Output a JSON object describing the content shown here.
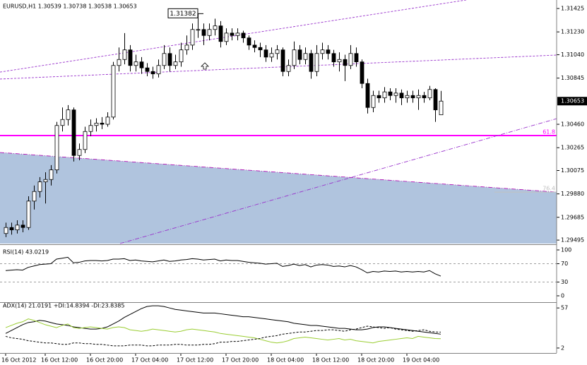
{
  "chart_data": [
    {
      "type": "candlestick",
      "title": "EURUSD,H1 1.30539 1.30738 1.30538 1.30653",
      "categories": [
        "16 Oct 2012",
        null,
        null,
        null,
        null,
        null,
        null,
        "16 Oct 12:00",
        null,
        null,
        null,
        null,
        null,
        null,
        null,
        "16 Oct 20:00",
        null,
        null,
        null,
        null,
        null,
        null,
        null,
        "17 Oct 04:00",
        null,
        null,
        null,
        null,
        null,
        null,
        null,
        "17 Oct 12:00",
        null,
        null,
        null,
        null,
        null,
        null,
        null,
        "17 Oct 20:00",
        null,
        null,
        null,
        null,
        null,
        null,
        null,
        "18 Oct 04:00",
        null,
        null,
        null,
        null,
        null,
        null,
        null,
        "18 Oct 12:00",
        null,
        null,
        null,
        null,
        null,
        null,
        null,
        "18 Oct 20:00",
        null,
        null,
        null,
        null,
        null,
        null,
        null,
        "19 Oct 04:00",
        null,
        null,
        null,
        null,
        null,
        null
      ],
      "open": [
        1.2955,
        1.296,
        1.2958,
        1.2962,
        1.296,
        1.2982,
        1.299,
        1.2998,
        1.3,
        1.3008,
        1.3045,
        1.305,
        1.3058,
        1.302,
        1.3025,
        1.304,
        1.3045,
        1.3047,
        1.3046,
        1.3052,
        1.3095,
        1.31,
        1.3108,
        1.3095,
        1.3098,
        1.3093,
        1.309,
        1.3088,
        1.3095,
        1.3105,
        1.3095,
        1.3098,
        1.3108,
        1.3112,
        1.3125,
        1.3125,
        1.312,
        1.3125,
        1.3128,
        1.3115,
        1.3122,
        1.312,
        1.3122,
        1.3118,
        1.3112,
        1.311,
        1.3108,
        1.3102,
        1.3105,
        1.3108,
        1.309,
        1.3095,
        1.3108,
        1.31,
        1.3105,
        1.309,
        1.3105,
        1.3108,
        1.3105,
        1.3098,
        1.31,
        1.3095,
        1.3105,
        1.3098,
        1.308,
        1.306,
        1.307,
        1.3068,
        1.3073,
        1.307,
        1.3072,
        1.3068,
        1.307,
        1.3068,
        1.307,
        1.3068,
        1.3075,
        1.30539
      ],
      "high": [
        1.2964,
        1.2964,
        1.2966,
        1.2966,
        1.2986,
        1.2995,
        1.3002,
        1.3006,
        1.3012,
        1.3048,
        1.306,
        1.3062,
        1.306,
        1.303,
        1.3044,
        1.305,
        1.3051,
        1.3052,
        1.3056,
        1.3098,
        1.311,
        1.3122,
        1.3112,
        1.3104,
        1.3102,
        1.3097,
        1.3094,
        1.31,
        1.3112,
        1.311,
        1.3104,
        1.3114,
        1.312,
        1.313,
        1.3138,
        1.313,
        1.313,
        1.3134,
        1.3132,
        1.3126,
        1.3126,
        1.3126,
        1.3124,
        1.312,
        1.3116,
        1.3114,
        1.3112,
        1.311,
        1.3112,
        1.311,
        1.31,
        1.3115,
        1.3112,
        1.311,
        1.3108,
        1.3112,
        1.3114,
        1.3112,
        1.3108,
        1.3106,
        1.3104,
        1.3112,
        1.311,
        1.31,
        1.3084,
        1.3074,
        1.3074,
        1.3077,
        1.3076,
        1.3076,
        1.3075,
        1.3074,
        1.3074,
        1.3075,
        1.3073,
        1.3078,
        1.3076,
        1.30738
      ],
      "low": [
        1.2952,
        1.2954,
        1.2955,
        1.2956,
        1.2958,
        1.2975,
        1.2985,
        1.298,
        1.2995,
        1.3005,
        1.304,
        1.3045,
        1.3015,
        1.3016,
        1.3022,
        1.3036,
        1.304,
        1.3042,
        1.3044,
        1.305,
        1.309,
        1.3096,
        1.309,
        1.309,
        1.3088,
        1.3086,
        1.3084,
        1.3085,
        1.3092,
        1.309,
        1.3092,
        1.3094,
        1.3104,
        1.3108,
        1.3118,
        1.3112,
        1.3116,
        1.312,
        1.311,
        1.3112,
        1.3116,
        1.3116,
        1.3114,
        1.3108,
        1.3106,
        1.3102,
        1.3098,
        1.3098,
        1.31,
        1.3086,
        1.3086,
        1.3092,
        1.3096,
        1.3096,
        1.3084,
        1.3086,
        1.31,
        1.31,
        1.3094,
        1.309,
        1.3082,
        1.3092,
        1.3094,
        1.3076,
        1.3055,
        1.3056,
        1.3064,
        1.3064,
        1.3066,
        1.3064,
        1.3062,
        1.3064,
        1.3064,
        1.3058,
        1.3064,
        1.3066,
        1.3048,
        1.30538
      ],
      "close": [
        1.296,
        1.2958,
        1.2962,
        1.296,
        1.2982,
        1.299,
        1.2998,
        1.3,
        1.3008,
        1.3045,
        1.305,
        1.3058,
        1.302,
        1.3025,
        1.304,
        1.3045,
        1.3047,
        1.3046,
        1.3052,
        1.3095,
        1.31,
        1.3108,
        1.3095,
        1.3098,
        1.3093,
        1.309,
        1.3088,
        1.3095,
        1.3105,
        1.3095,
        1.3098,
        1.3108,
        1.3112,
        1.3125,
        1.3125,
        1.312,
        1.3125,
        1.3128,
        1.3115,
        1.3122,
        1.312,
        1.3122,
        1.3118,
        1.3112,
        1.311,
        1.3108,
        1.3102,
        1.3105,
        1.3108,
        1.309,
        1.3095,
        1.3108,
        1.31,
        1.3105,
        1.309,
        1.3105,
        1.3108,
        1.3105,
        1.3098,
        1.31,
        1.3095,
        1.3105,
        1.3098,
        1.308,
        1.306,
        1.307,
        1.3068,
        1.3073,
        1.307,
        1.3072,
        1.3068,
        1.307,
        1.3068,
        1.307,
        1.3068,
        1.3075,
        1.3058,
        1.30653
      ],
      "ylim": [
        1.29466,
        1.31484
      ],
      "yticks": [
        1.31425,
        {
          "value": 1.3123,
          "label": "1.31230"
        },
        {
          "value": 1.3104,
          "label": "1.31040"
        },
        {
          "value": 1.30845,
          "label": "1.30845"
        },
        {
          "value": 1.3046,
          "label": "1.30460"
        },
        {
          "value": 1.30265,
          "label": "1.30265"
        },
        {
          "value": 1.30075,
          "label": "1.30075"
        },
        {
          "value": 1.2988,
          "label": "1.29880"
        },
        {
          "value": 1.29685,
          "label": "1.29685"
        },
        {
          "value": 1.29495,
          "label": "1.29495"
        }
      ],
      "last_price": 1.30653,
      "price_label": 1.31382,
      "trendlines": [
        {
          "x": [
            -1,
            81.5
          ],
          "y": [
            1.30895,
            1.31496
          ],
          "color": "#9932cc",
          "dash": "3,2"
        },
        {
          "x": [
            -1,
            97.5
          ],
          "y": [
            1.30837,
            1.31037
          ],
          "color": "#9932cc",
          "dash": "3,2"
        },
        {
          "x": [
            20.25,
            97.5
          ],
          "y": [
            1.29466,
            1.30507
          ],
          "color": "#9932cc",
          "dash": "6,2,1,2"
        }
      ],
      "zone": {
        "label": "76.4",
        "x": [
          -1,
          97.5
        ],
        "y": [
          1.30225,
          1.29895
        ],
        "color": "#b0c4de",
        "edge": "#b000b0"
      },
      "levels": [
        {
          "label": "61.8",
          "value": 1.30366,
          "color": "#ff00ff"
        }
      ]
    },
    {
      "type": "line",
      "title": "RSI(14) 43.0219",
      "ylim": [
        0,
        100
      ],
      "yticks": [
        100,
        70,
        30,
        0
      ],
      "levels": [
        70,
        30
      ],
      "series": [
        {
          "color": "#000000",
          "values": [
            55,
            56,
            57,
            56,
            62,
            65,
            68,
            69,
            70,
            80,
            82,
            84,
            72,
            73,
            76,
            77,
            77,
            76,
            77,
            80,
            80,
            81,
            77,
            78,
            76,
            75,
            74,
            76,
            78,
            75,
            76,
            78,
            79,
            81,
            80,
            78,
            79,
            80,
            76,
            78,
            77,
            77,
            75,
            73,
            72,
            71,
            69,
            70,
            71,
            64,
            66,
            69,
            66,
            68,
            63,
            67,
            68,
            67,
            64,
            65,
            63,
            66,
            63,
            57,
            50,
            53,
            52,
            54,
            53,
            54,
            52,
            53,
            52,
            53,
            52,
            55,
            48,
            43.0219
          ]
        }
      ]
    },
    {
      "type": "line",
      "title": "ADX(14) 21.0191 +DI:14.8394 -DI:23.8385",
      "ylim": [
        0,
        63
      ],
      "yticks": [
        57,
        2
      ],
      "series": [
        {
          "color": "#000000",
          "values": [
            22,
            26,
            30,
            34,
            37,
            38,
            40,
            39,
            37,
            35,
            34,
            33,
            31,
            30,
            29,
            28,
            28,
            29,
            31,
            35,
            39,
            44,
            48,
            52,
            56,
            59,
            60,
            60,
            59,
            57,
            55,
            54,
            53,
            52,
            51,
            50,
            50,
            50,
            49,
            48,
            47,
            46,
            45,
            45,
            44,
            43,
            42,
            41,
            40,
            39,
            38,
            36,
            35,
            34,
            33,
            33,
            32,
            31,
            30,
            29,
            29,
            28,
            27,
            27,
            28,
            30,
            31,
            31,
            30,
            29,
            28,
            27,
            26,
            25,
            24,
            23,
            22,
            21.0191
          ]
        },
        {
          "color": "#9acd32",
          "values": [
            30,
            33,
            36,
            38,
            42,
            40,
            37,
            34,
            32,
            30,
            33,
            35,
            30,
            29,
            30,
            31,
            30,
            29,
            28,
            30,
            31,
            30,
            27,
            26,
            25,
            26,
            28,
            27,
            26,
            25,
            24,
            25,
            27,
            28,
            27,
            26,
            25,
            24,
            22,
            21,
            20,
            19,
            18,
            17,
            16,
            14,
            12,
            10,
            9,
            10,
            12,
            15,
            16,
            17,
            16,
            15,
            14,
            13,
            14,
            15,
            13,
            14,
            12,
            11,
            10,
            9,
            11,
            12,
            13,
            14,
            15,
            16,
            15,
            18,
            17,
            16,
            15,
            14.8394
          ]
        },
        {
          "color": "#000000",
          "dash": "3,2",
          "values": [
            18,
            16,
            15,
            14,
            12,
            11,
            10,
            9,
            9,
            8,
            7,
            7,
            9,
            9,
            8,
            8,
            7,
            7,
            6,
            5,
            5,
            5,
            6,
            6,
            6,
            5,
            5,
            6,
            6,
            6,
            7,
            7,
            6,
            6,
            6,
            7,
            7,
            8,
            10,
            10,
            11,
            11,
            12,
            13,
            14,
            15,
            17,
            18,
            19,
            21,
            22,
            23,
            24,
            24,
            25,
            26,
            26,
            27,
            27,
            26,
            25,
            27,
            28,
            30,
            32,
            31,
            30,
            29,
            30,
            28,
            27,
            26,
            25,
            26,
            27,
            25,
            24,
            23.8385
          ]
        }
      ]
    }
  ]
}
